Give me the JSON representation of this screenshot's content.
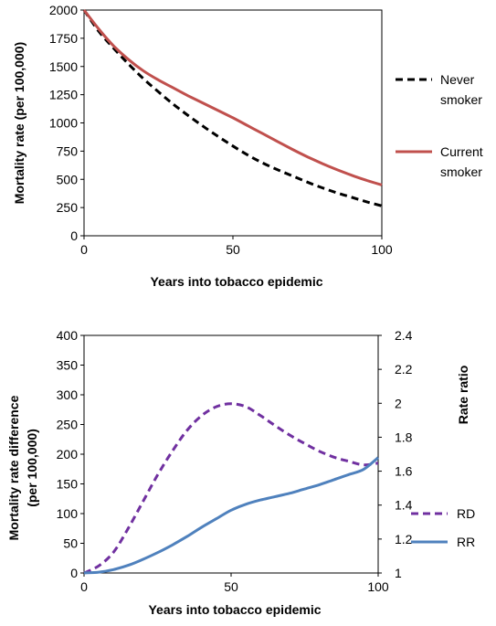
{
  "chart_data": [
    {
      "type": "line",
      "title": "",
      "xlabel": "Years into tobacco epidemic",
      "ylabel": "Mortality rate (per 100,000)",
      "xlim": [
        0,
        100
      ],
      "ylim": [
        0,
        2000
      ],
      "xticks": [
        "0",
        "50",
        "100"
      ],
      "yticks": [
        "0",
        "250",
        "500",
        "750",
        "1000",
        "1250",
        "1500",
        "1750",
        "2000"
      ],
      "grid": false,
      "legend_position": "right",
      "series": [
        {
          "name": "Never smoker",
          "legend_lines": [
            "Never",
            "smoker"
          ],
          "color": "#000000",
          "style": "dashed",
          "x": [
            0,
            5,
            10,
            15,
            20,
            25,
            30,
            35,
            40,
            45,
            50,
            55,
            60,
            65,
            70,
            75,
            80,
            85,
            90,
            95,
            100
          ],
          "y": [
            2000,
            1810,
            1660,
            1520,
            1390,
            1275,
            1165,
            1065,
            970,
            880,
            795,
            715,
            645,
            585,
            530,
            475,
            425,
            380,
            340,
            300,
            265
          ]
        },
        {
          "name": "Current smoker",
          "legend_lines": [
            "Current",
            "smoker"
          ],
          "color": "#c0504d",
          "style": "solid",
          "x": [
            0,
            5,
            10,
            15,
            20,
            25,
            30,
            35,
            40,
            45,
            50,
            55,
            60,
            65,
            70,
            75,
            80,
            85,
            90,
            95,
            100
          ],
          "y": [
            2000,
            1830,
            1680,
            1560,
            1460,
            1380,
            1310,
            1240,
            1175,
            1110,
            1045,
            975,
            905,
            835,
            765,
            700,
            640,
            585,
            535,
            490,
            450
          ]
        }
      ]
    },
    {
      "type": "line",
      "title": "",
      "xlabel": "Years into tobacco epidemic",
      "ylabel_lines": [
        "Mortality rate difference",
        "(per 100,000)"
      ],
      "y2label": "Rate ratio",
      "xlim": [
        0,
        100
      ],
      "ylim": [
        0,
        400
      ],
      "y2lim": [
        1,
        2.4
      ],
      "xticks": [
        "0",
        "50",
        "100"
      ],
      "yticks": [
        "0",
        "50",
        "100",
        "150",
        "200",
        "250",
        "300",
        "350",
        "400"
      ],
      "y2ticks": [
        "1",
        "1.2",
        "1.4",
        "1.6",
        "1.8",
        "2",
        "2.2",
        "2.4"
      ],
      "grid": false,
      "legend_position": "right",
      "series": [
        {
          "name": "RD",
          "axis": "left",
          "color": "#7030a0",
          "style": "dashed",
          "x": [
            0,
            5,
            10,
            15,
            20,
            25,
            30,
            35,
            40,
            45,
            50,
            55,
            60,
            65,
            70,
            75,
            80,
            85,
            90,
            95,
            100
          ],
          "y": [
            0,
            12,
            35,
            75,
            120,
            165,
            205,
            240,
            265,
            280,
            285,
            280,
            265,
            248,
            232,
            218,
            205,
            195,
            188,
            182,
            185
          ]
        },
        {
          "name": "RR",
          "axis": "right",
          "color": "#4f81bd",
          "style": "solid",
          "x": [
            0,
            5,
            10,
            15,
            20,
            25,
            30,
            35,
            40,
            45,
            50,
            55,
            60,
            65,
            70,
            75,
            80,
            85,
            90,
            95,
            100
          ],
          "y": [
            1.0,
            1.005,
            1.02,
            1.045,
            1.08,
            1.12,
            1.165,
            1.215,
            1.27,
            1.32,
            1.37,
            1.405,
            1.43,
            1.45,
            1.47,
            1.495,
            1.52,
            1.55,
            1.58,
            1.61,
            1.68
          ]
        }
      ]
    }
  ]
}
